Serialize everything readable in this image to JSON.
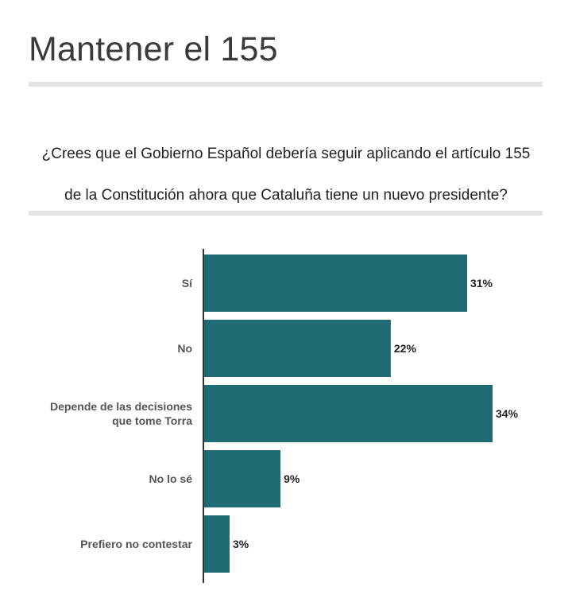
{
  "header": {
    "title": "Mantener el 155"
  },
  "question": {
    "line1": "¿Crees que el Gobierno Español debería seguir aplicando el artículo 155",
    "line2": "de la Constitución ahora que Cataluña tiene un nuevo presidente?"
  },
  "colors": {
    "bar": "#1e6b74",
    "axis": "#333333",
    "rule": "#e4e4e4"
  },
  "chart_data": {
    "type": "bar",
    "orientation": "horizontal",
    "categories": [
      [
        "Sí"
      ],
      [
        "No"
      ],
      [
        "Depende de las decisiones",
        "que tome Torra"
      ],
      [
        "No lo sé"
      ],
      [
        "Prefiero no contestar"
      ]
    ],
    "values": [
      31,
      22,
      34,
      9,
      3
    ],
    "value_labels": [
      "31%",
      "22%",
      "34%",
      "9%",
      "3%"
    ],
    "unit": "%",
    "xlim": [
      0,
      34
    ],
    "grid": false,
    "legend": "none"
  }
}
